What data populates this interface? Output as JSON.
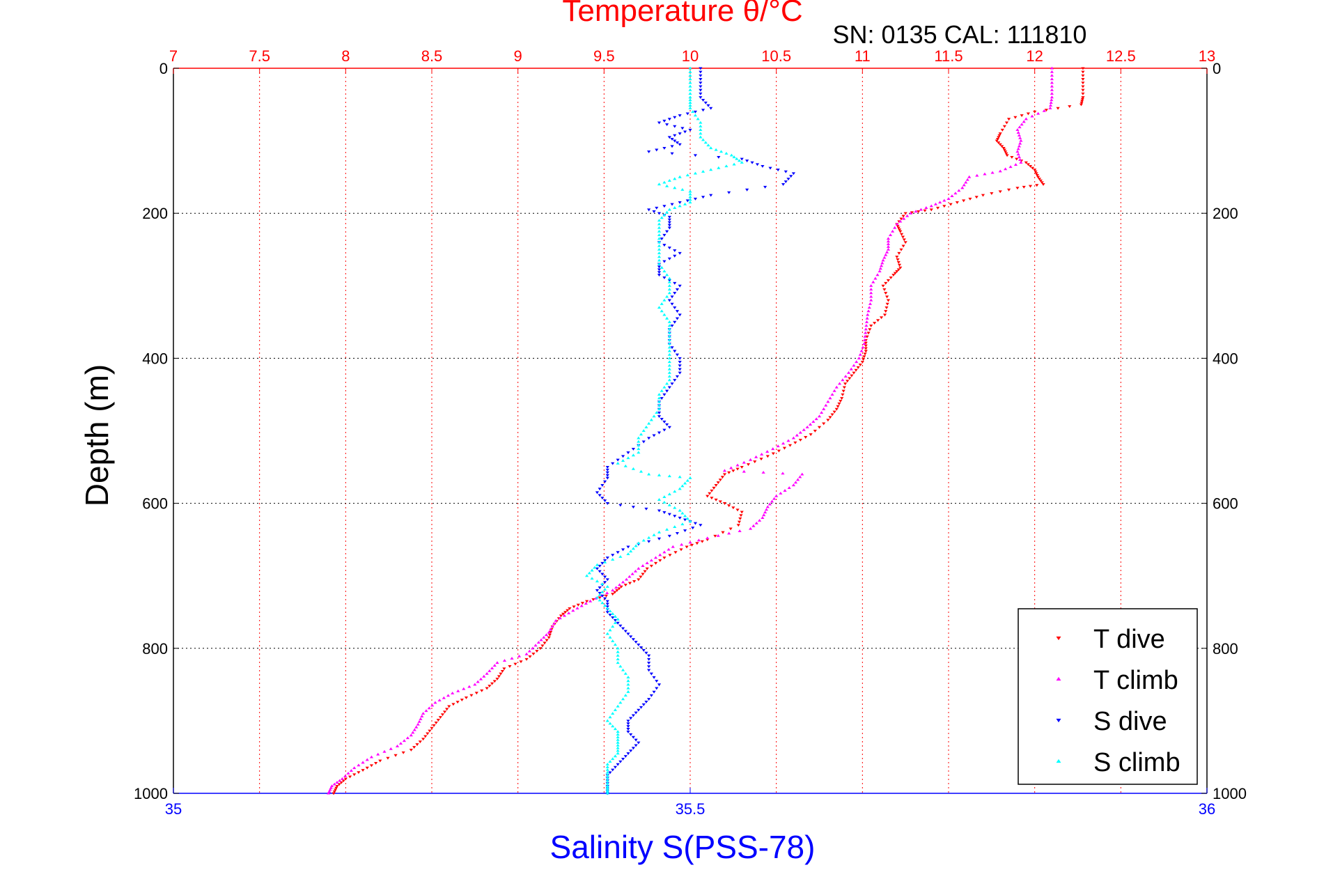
{
  "chart_data": {
    "type": "scatter",
    "title": "Temperature θ/°C",
    "subtitle": "SN: 0135  CAL: 111810",
    "ylabel": "Depth (m)",
    "xlabel_bottom": "Salinity S(PSS-78)",
    "xlabel_top": "Temperature θ/°C",
    "ylim": [
      0,
      1000
    ],
    "y_reversed": true,
    "y_ticks": [
      "0",
      "200",
      "400",
      "600",
      "800",
      "1000"
    ],
    "top_axis": {
      "range": [
        7,
        13
      ],
      "ticks": [
        "7",
        "7.5",
        "8",
        "8.5",
        "9",
        "9.5",
        "10",
        "10.5",
        "11",
        "11.5",
        "12",
        "12.5",
        "13"
      ],
      "color": "#ff0000"
    },
    "bottom_axis": {
      "range": [
        35,
        36
      ],
      "ticks": [
        "35",
        "35.5",
        "36"
      ],
      "color": "#0000ff"
    },
    "grid": true,
    "legend_position": "bottom-right",
    "series": [
      {
        "name": "T dive",
        "axis": "top",
        "color": "#ff0000",
        "marker": "triangle-down",
        "points": [
          [
            12.28,
            0
          ],
          [
            12.28,
            20
          ],
          [
            12.28,
            40
          ],
          [
            12.27,
            50
          ],
          [
            12.0,
            60
          ],
          [
            11.85,
            70
          ],
          [
            11.8,
            90
          ],
          [
            11.78,
            100
          ],
          [
            11.82,
            110
          ],
          [
            11.84,
            120
          ],
          [
            11.95,
            130
          ],
          [
            12.0,
            140
          ],
          [
            12.02,
            150
          ],
          [
            12.05,
            160
          ],
          [
            11.9,
            165
          ],
          [
            11.7,
            175
          ],
          [
            11.55,
            185
          ],
          [
            11.4,
            195
          ],
          [
            11.25,
            200
          ],
          [
            11.2,
            215
          ],
          [
            11.22,
            225
          ],
          [
            11.25,
            240
          ],
          [
            11.2,
            260
          ],
          [
            11.22,
            275
          ],
          [
            11.18,
            285
          ],
          [
            11.12,
            300
          ],
          [
            11.15,
            320
          ],
          [
            11.13,
            340
          ],
          [
            11.05,
            355
          ],
          [
            11.02,
            375
          ],
          [
            11.02,
            390
          ],
          [
            11.0,
            405
          ],
          [
            10.95,
            420
          ],
          [
            10.9,
            435
          ],
          [
            10.88,
            455
          ],
          [
            10.85,
            470
          ],
          [
            10.8,
            485
          ],
          [
            10.7,
            505
          ],
          [
            10.58,
            520
          ],
          [
            10.45,
            535
          ],
          [
            10.3,
            550
          ],
          [
            10.2,
            560
          ],
          [
            10.15,
            575
          ],
          [
            10.1,
            590
          ],
          [
            10.2,
            600
          ],
          [
            10.3,
            612
          ],
          [
            10.28,
            630
          ],
          [
            10.1,
            650
          ],
          [
            9.98,
            660
          ],
          [
            9.85,
            675
          ],
          [
            9.75,
            690
          ],
          [
            9.7,
            705
          ],
          [
            9.6,
            715
          ],
          [
            9.55,
            725
          ],
          [
            9.4,
            735
          ],
          [
            9.3,
            745
          ],
          [
            9.25,
            755
          ],
          [
            9.2,
            770
          ],
          [
            9.18,
            785
          ],
          [
            9.13,
            800
          ],
          [
            9.05,
            815
          ],
          [
            8.92,
            828
          ],
          [
            8.88,
            842
          ],
          [
            8.82,
            855
          ],
          [
            8.7,
            868
          ],
          [
            8.6,
            880
          ],
          [
            8.55,
            895
          ],
          [
            8.5,
            910
          ],
          [
            8.45,
            925
          ],
          [
            8.38,
            940
          ],
          [
            8.2,
            955
          ],
          [
            8.1,
            968
          ],
          [
            8.0,
            980
          ],
          [
            7.95,
            990
          ],
          [
            7.93,
            1000
          ]
        ]
      },
      {
        "name": "T climb",
        "axis": "top",
        "color": "#ff00ff",
        "marker": "triangle-up",
        "points": [
          [
            12.1,
            0
          ],
          [
            12.1,
            20
          ],
          [
            12.1,
            40
          ],
          [
            12.09,
            55
          ],
          [
            11.95,
            70
          ],
          [
            11.9,
            85
          ],
          [
            11.92,
            100
          ],
          [
            11.9,
            115
          ],
          [
            11.92,
            130
          ],
          [
            11.8,
            142
          ],
          [
            11.62,
            150
          ],
          [
            11.58,
            165
          ],
          [
            11.5,
            180
          ],
          [
            11.4,
            190
          ],
          [
            11.28,
            200
          ],
          [
            11.2,
            215
          ],
          [
            11.15,
            235
          ],
          [
            11.15,
            250
          ],
          [
            11.12,
            265
          ],
          [
            11.1,
            280
          ],
          [
            11.05,
            300
          ],
          [
            11.05,
            320
          ],
          [
            11.03,
            340
          ],
          [
            11.02,
            360
          ],
          [
            11.01,
            380
          ],
          [
            10.98,
            400
          ],
          [
            10.92,
            420
          ],
          [
            10.85,
            440
          ],
          [
            10.8,
            460
          ],
          [
            10.75,
            480
          ],
          [
            10.68,
            495
          ],
          [
            10.6,
            510
          ],
          [
            10.48,
            525
          ],
          [
            10.35,
            540
          ],
          [
            10.2,
            555
          ],
          [
            10.65,
            560
          ],
          [
            10.6,
            575
          ],
          [
            10.5,
            590
          ],
          [
            10.45,
            605
          ],
          [
            10.42,
            620
          ],
          [
            10.35,
            635
          ],
          [
            10.1,
            648
          ],
          [
            9.9,
            660
          ],
          [
            9.8,
            675
          ],
          [
            9.7,
            690
          ],
          [
            9.63,
            705
          ],
          [
            9.55,
            720
          ],
          [
            9.42,
            735
          ],
          [
            9.32,
            748
          ],
          [
            9.22,
            762
          ],
          [
            9.18,
            778
          ],
          [
            9.12,
            792
          ],
          [
            9.05,
            808
          ],
          [
            8.88,
            820
          ],
          [
            8.82,
            835
          ],
          [
            8.75,
            850
          ],
          [
            8.62,
            862
          ],
          [
            8.52,
            875
          ],
          [
            8.45,
            890
          ],
          [
            8.42,
            905
          ],
          [
            8.38,
            920
          ],
          [
            8.3,
            935
          ],
          [
            8.15,
            950
          ],
          [
            8.05,
            965
          ],
          [
            7.98,
            980
          ],
          [
            7.92,
            990
          ],
          [
            7.9,
            1000
          ]
        ]
      },
      {
        "name": "S dive",
        "axis": "bottom",
        "color": "#0000ff",
        "marker": "triangle-down",
        "points": [
          [
            35.51,
            0
          ],
          [
            35.51,
            20
          ],
          [
            35.51,
            40
          ],
          [
            35.52,
            55
          ],
          [
            35.49,
            65
          ],
          [
            35.47,
            75
          ],
          [
            35.5,
            85
          ],
          [
            35.48,
            95
          ],
          [
            35.49,
            105
          ],
          [
            35.46,
            115
          ],
          [
            35.55,
            125
          ],
          [
            35.57,
            135
          ],
          [
            35.6,
            145
          ],
          [
            35.59,
            160
          ],
          [
            35.52,
            175
          ],
          [
            35.49,
            185
          ],
          [
            35.46,
            195
          ],
          [
            35.48,
            205
          ],
          [
            35.48,
            220
          ],
          [
            35.47,
            240
          ],
          [
            35.49,
            255
          ],
          [
            35.47,
            270
          ],
          [
            35.47,
            285
          ],
          [
            35.49,
            300
          ],
          [
            35.48,
            320
          ],
          [
            35.49,
            340
          ],
          [
            35.48,
            360
          ],
          [
            35.48,
            380
          ],
          [
            35.49,
            400
          ],
          [
            35.49,
            420
          ],
          [
            35.48,
            440
          ],
          [
            35.47,
            460
          ],
          [
            35.47,
            480
          ],
          [
            35.48,
            495
          ],
          [
            35.46,
            510
          ],
          [
            35.44,
            530
          ],
          [
            35.42,
            550
          ],
          [
            35.42,
            565
          ],
          [
            35.41,
            585
          ],
          [
            35.42,
            600
          ],
          [
            35.47,
            610
          ],
          [
            35.49,
            620
          ],
          [
            35.51,
            630
          ],
          [
            35.48,
            645
          ],
          [
            35.44,
            660
          ],
          [
            35.42,
            675
          ],
          [
            35.41,
            690
          ],
          [
            35.42,
            705
          ],
          [
            35.41,
            720
          ],
          [
            35.42,
            735
          ],
          [
            35.42,
            750
          ],
          [
            35.43,
            765
          ],
          [
            35.44,
            780
          ],
          [
            35.45,
            795
          ],
          [
            35.46,
            810
          ],
          [
            35.46,
            830
          ],
          [
            35.47,
            850
          ],
          [
            35.46,
            870
          ],
          [
            35.45,
            885
          ],
          [
            35.44,
            900
          ],
          [
            35.44,
            915
          ],
          [
            35.45,
            930
          ],
          [
            35.44,
            945
          ],
          [
            35.43,
            960
          ],
          [
            35.42,
            975
          ],
          [
            35.42,
            990
          ],
          [
            35.42,
            1000
          ]
        ]
      },
      {
        "name": "S climb",
        "axis": "bottom",
        "color": "#00ffff",
        "marker": "triangle-up",
        "points": [
          [
            35.5,
            0
          ],
          [
            35.5,
            20
          ],
          [
            35.5,
            40
          ],
          [
            35.5,
            55
          ],
          [
            35.51,
            75
          ],
          [
            35.51,
            95
          ],
          [
            35.52,
            110
          ],
          [
            35.54,
            120
          ],
          [
            35.55,
            130
          ],
          [
            35.52,
            140
          ],
          [
            35.49,
            150
          ],
          [
            35.47,
            160
          ],
          [
            35.5,
            170
          ],
          [
            35.5,
            185
          ],
          [
            35.48,
            195
          ],
          [
            35.47,
            210
          ],
          [
            35.47,
            230
          ],
          [
            35.47,
            250
          ],
          [
            35.47,
            270
          ],
          [
            35.48,
            290
          ],
          [
            35.48,
            310
          ],
          [
            35.47,
            330
          ],
          [
            35.48,
            350
          ],
          [
            35.48,
            370
          ],
          [
            35.48,
            390
          ],
          [
            35.48,
            410
          ],
          [
            35.48,
            430
          ],
          [
            35.47,
            450
          ],
          [
            35.47,
            470
          ],
          [
            35.46,
            490
          ],
          [
            35.45,
            510
          ],
          [
            35.45,
            530
          ],
          [
            35.43,
            545
          ],
          [
            35.46,
            560
          ],
          [
            35.5,
            565
          ],
          [
            35.49,
            580
          ],
          [
            35.47,
            595
          ],
          [
            35.49,
            610
          ],
          [
            35.5,
            625
          ],
          [
            35.47,
            640
          ],
          [
            35.45,
            655
          ],
          [
            35.44,
            670
          ],
          [
            35.41,
            685
          ],
          [
            35.4,
            700
          ],
          [
            35.42,
            715
          ],
          [
            35.41,
            730
          ],
          [
            35.42,
            745
          ],
          [
            35.43,
            760
          ],
          [
            35.42,
            780
          ],
          [
            35.43,
            800
          ],
          [
            35.43,
            820
          ],
          [
            35.44,
            840
          ],
          [
            35.44,
            860
          ],
          [
            35.43,
            880
          ],
          [
            35.42,
            900
          ],
          [
            35.43,
            915
          ],
          [
            35.43,
            930
          ],
          [
            35.43,
            945
          ],
          [
            35.42,
            960
          ],
          [
            35.42,
            975
          ],
          [
            35.42,
            990
          ],
          [
            35.42,
            1000
          ]
        ]
      }
    ]
  }
}
